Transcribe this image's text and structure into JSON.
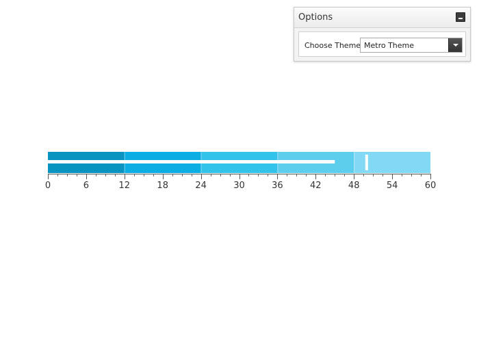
{
  "options": {
    "title": "Options",
    "collapse_icon": "minus-icon",
    "theme_label": "Choose Theme:",
    "theme_value": "Metro Theme"
  },
  "chart_data": {
    "type": "bullet",
    "title": "",
    "xlim": [
      0,
      60
    ],
    "tick_labels": [
      "0",
      "6",
      "12",
      "18",
      "24",
      "30",
      "36",
      "42",
      "48",
      "54",
      "60"
    ],
    "major_ticks": [
      0,
      6,
      12,
      18,
      24,
      30,
      36,
      42,
      48,
      54,
      60
    ],
    "minor_tick_step": 1.5,
    "qualitative_ranges": [
      {
        "from": 0,
        "to": 12,
        "color": "#0893c1"
      },
      {
        "from": 12,
        "to": 24,
        "color": "#0aaee3"
      },
      {
        "from": 24,
        "to": 36,
        "color": "#33c2ea"
      },
      {
        "from": 36,
        "to": 48,
        "color": "#5dcdee"
      },
      {
        "from": 48,
        "to": 60,
        "color": "#82d9f5"
      }
    ],
    "featured_measure": 45,
    "comparative_measure": 50,
    "measure_color": "#ffffff"
  }
}
